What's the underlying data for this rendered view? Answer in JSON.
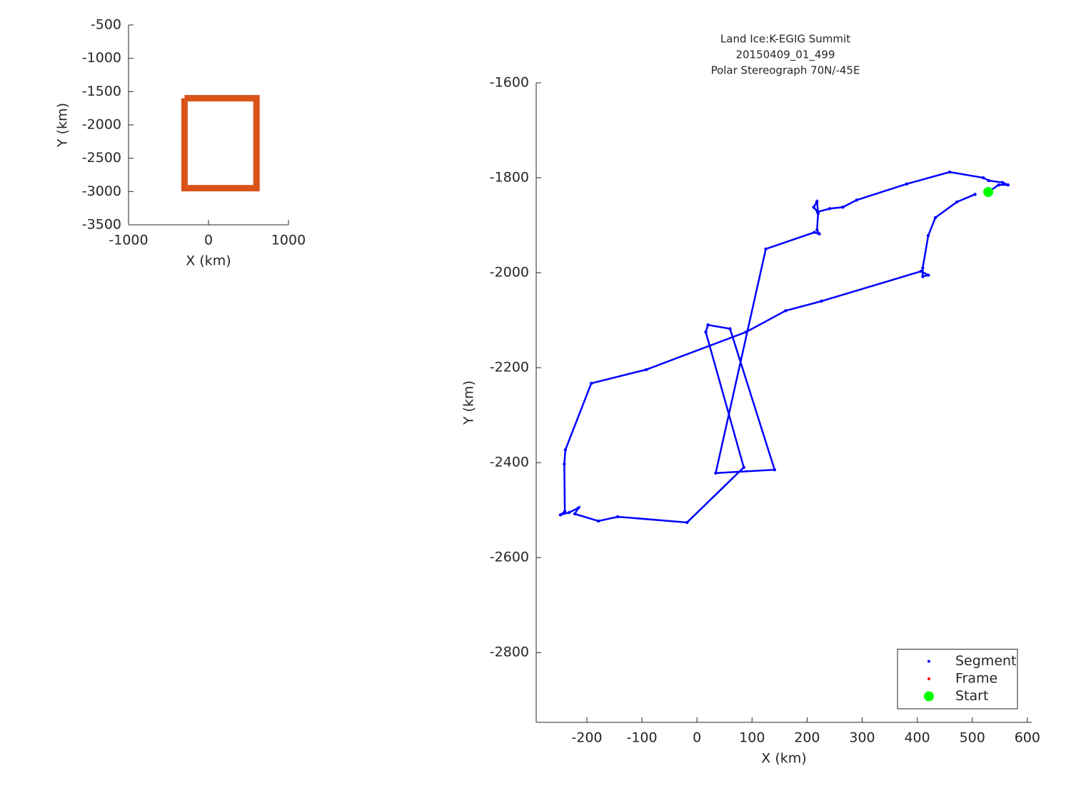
{
  "chart_data": [
    {
      "type": "line",
      "xlabel": "X (km)",
      "ylabel": "Y (km)",
      "xlim": [
        -1000,
        1000
      ],
      "ylim": [
        -3500,
        -500
      ],
      "xticks": [
        -1000,
        0,
        1000
      ],
      "yticks": [
        -3500,
        -3000,
        -2500,
        -2000,
        -1500,
        -1000,
        -500
      ],
      "series": [
        {
          "color": "#d95319",
          "x": [
            -300,
            600,
            600,
            -300,
            -300
          ],
          "y": [
            -1600,
            -1600,
            -2950,
            -2950,
            -1600
          ]
        }
      ]
    },
    {
      "type": "scatter",
      "title": [
        "Land Ice:K-EGIG Summit",
        "20150409_01_499",
        "Polar Stereograph 70N/-45E"
      ],
      "xlabel": "X (km)",
      "ylabel": "Y (km)",
      "xlim": [
        -292,
        608
      ],
      "ylim": [
        -2947,
        -1600
      ],
      "xticks": [
        -200,
        -100,
        0,
        100,
        200,
        300,
        400,
        500,
        600
      ],
      "yticks": [
        -2800,
        -2600,
        -2400,
        -2200,
        -2000,
        -1800,
        -1600
      ],
      "legend": "southeast",
      "series": [
        {
          "name": "Segment",
          "color": "#0000ff",
          "x": [
            529,
            548,
            565,
            555,
            530,
            520,
            459,
            381,
            290,
            265,
            241,
            219,
            212,
            218,
            220,
            218,
            222,
            213,
            125,
            34,
            141,
            60,
            20,
            16,
            85,
            -18,
            -144,
            -179,
            -222,
            -215,
            -232,
            -248,
            -240,
            -241,
            -239,
            -192,
            -92,
            89,
            161,
            226,
            407,
            420,
            410,
            410,
            420,
            433,
            472,
            505
          ],
          "y": [
            -1830,
            -1815,
            -1815,
            -1810,
            -1806,
            -1800,
            -1788,
            -1813,
            -1847,
            -1862,
            -1865,
            -1872,
            -1862,
            -1850,
            -1875,
            -1910,
            -1918,
            -1915,
            -1950,
            -2422,
            -2415,
            -2118,
            -2110,
            -2125,
            -2410,
            -2526,
            -2514,
            -2523,
            -2508,
            -2495,
            -2505,
            -2510,
            -2503,
            -2403,
            -2373,
            -2233,
            -2204,
            -2125,
            -2080,
            -2060,
            -1997,
            -2005,
            -2008,
            -1990,
            -1922,
            -1884,
            -1851,
            -1835
          ]
        },
        {
          "name": "Frame",
          "color": "#ff0000",
          "x": [],
          "y": []
        },
        {
          "name": "Start",
          "color": "#00ff00",
          "x": [
            529
          ],
          "y": [
            -1830
          ]
        }
      ]
    }
  ]
}
